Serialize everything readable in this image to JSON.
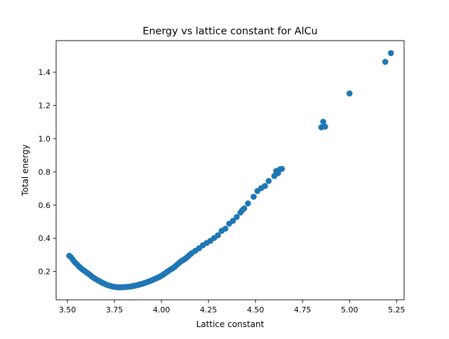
{
  "chart_data": {
    "type": "scatter",
    "title": "Energy vs lattice constant for AlCu",
    "xlabel": "Lattice constant",
    "ylabel": "Total energy",
    "xlim": [
      3.44,
      5.29
    ],
    "ylim": [
      0.03,
      1.59
    ],
    "xticks": [
      3.5,
      3.75,
      4.0,
      4.25,
      4.5,
      4.75,
      5.0,
      5.25
    ],
    "xtick_labels": [
      "3.50",
      "3.75",
      "4.00",
      "4.25",
      "4.50",
      "4.75",
      "5.00",
      "5.25"
    ],
    "yticks": [
      0.2,
      0.4,
      0.6,
      0.8,
      1.0,
      1.2,
      1.4
    ],
    "ytick_labels": [
      "0.2",
      "0.4",
      "0.6",
      "0.8",
      "1.0",
      "1.2",
      "1.4"
    ],
    "grid": false,
    "marker_color": "#1f77b4",
    "points": [
      [
        3.51,
        0.295
      ],
      [
        3.52,
        0.285
      ],
      [
        3.53,
        0.27
      ],
      [
        3.54,
        0.255
      ],
      [
        3.55,
        0.245
      ],
      [
        3.56,
        0.232
      ],
      [
        3.57,
        0.222
      ],
      [
        3.58,
        0.212
      ],
      [
        3.59,
        0.205
      ],
      [
        3.6,
        0.196
      ],
      [
        3.61,
        0.188
      ],
      [
        3.62,
        0.18
      ],
      [
        3.63,
        0.17
      ],
      [
        3.64,
        0.162
      ],
      [
        3.65,
        0.155
      ],
      [
        3.66,
        0.148
      ],
      [
        3.67,
        0.142
      ],
      [
        3.68,
        0.136
      ],
      [
        3.69,
        0.13
      ],
      [
        3.7,
        0.125
      ],
      [
        3.71,
        0.12
      ],
      [
        3.72,
        0.116
      ],
      [
        3.73,
        0.113
      ],
      [
        3.74,
        0.11
      ],
      [
        3.75,
        0.108
      ],
      [
        3.76,
        0.106
      ],
      [
        3.77,
        0.105
      ],
      [
        3.78,
        0.105
      ],
      [
        3.79,
        0.105
      ],
      [
        3.8,
        0.106
      ],
      [
        3.81,
        0.107
      ],
      [
        3.82,
        0.108
      ],
      [
        3.83,
        0.109
      ],
      [
        3.84,
        0.111
      ],
      [
        3.85,
        0.113
      ],
      [
        3.86,
        0.115
      ],
      [
        3.87,
        0.118
      ],
      [
        3.88,
        0.121
      ],
      [
        3.89,
        0.124
      ],
      [
        3.9,
        0.127
      ],
      [
        3.91,
        0.131
      ],
      [
        3.92,
        0.135
      ],
      [
        3.93,
        0.139
      ],
      [
        3.94,
        0.143
      ],
      [
        3.95,
        0.148
      ],
      [
        3.96,
        0.153
      ],
      [
        3.97,
        0.158
      ],
      [
        3.98,
        0.163
      ],
      [
        3.99,
        0.168
      ],
      [
        4.0,
        0.175
      ],
      [
        4.01,
        0.182
      ],
      [
        4.02,
        0.19
      ],
      [
        4.03,
        0.198
      ],
      [
        4.04,
        0.206
      ],
      [
        4.05,
        0.213
      ],
      [
        4.06,
        0.22
      ],
      [
        4.07,
        0.228
      ],
      [
        4.08,
        0.238
      ],
      [
        4.09,
        0.248
      ],
      [
        4.1,
        0.258
      ],
      [
        4.11,
        0.266
      ],
      [
        4.12,
        0.272
      ],
      [
        4.13,
        0.28
      ],
      [
        4.14,
        0.29
      ],
      [
        4.15,
        0.3
      ],
      [
        4.16,
        0.31
      ],
      [
        4.18,
        0.325
      ],
      [
        4.2,
        0.34
      ],
      [
        4.22,
        0.358
      ],
      [
        4.24,
        0.372
      ],
      [
        4.26,
        0.385
      ],
      [
        4.28,
        0.402
      ],
      [
        4.3,
        0.418
      ],
      [
        4.32,
        0.445
      ],
      [
        4.34,
        0.458
      ],
      [
        4.36,
        0.488
      ],
      [
        4.38,
        0.505
      ],
      [
        4.4,
        0.528
      ],
      [
        4.42,
        0.555
      ],
      [
        4.43,
        0.57
      ],
      [
        4.44,
        0.58
      ],
      [
        4.46,
        0.61
      ],
      [
        4.49,
        0.65
      ],
      [
        4.51,
        0.685
      ],
      [
        4.53,
        0.702
      ],
      [
        4.55,
        0.715
      ],
      [
        4.57,
        0.745
      ],
      [
        4.6,
        0.775
      ],
      [
        4.61,
        0.805
      ],
      [
        4.62,
        0.792
      ],
      [
        4.63,
        0.815
      ],
      [
        4.64,
        0.818
      ],
      [
        4.85,
        1.068
      ],
      [
        4.86,
        1.102
      ],
      [
        4.87,
        1.072
      ],
      [
        5.0,
        1.272
      ],
      [
        5.19,
        1.462
      ],
      [
        5.22,
        1.515
      ]
    ]
  }
}
